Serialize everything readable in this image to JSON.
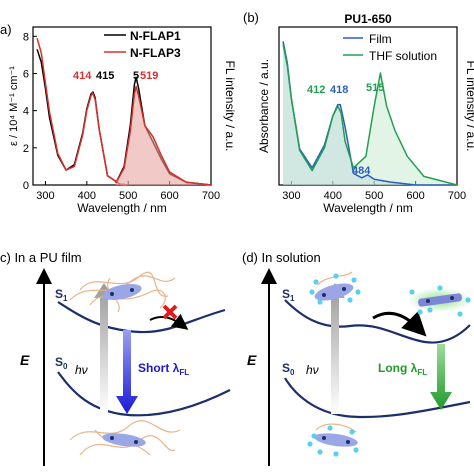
{
  "panel_a": {
    "label": "a)",
    "legend": [
      "N-FLAP1",
      "N-FLAP3"
    ],
    "peak_labels": [
      "414",
      "415",
      "519"
    ],
    "ylabel_left": "ε / 10⁴ M⁻¹ cm⁻¹",
    "ylabel_right": "FL intensity / a.u.",
    "xlabel": "Wavelength / nm",
    "yticks": [
      "0",
      "2",
      "4",
      "6",
      "8"
    ],
    "xticks": [
      "300",
      "400",
      "500",
      "600",
      "700"
    ]
  },
  "panel_b": {
    "label": "(b)",
    "title": "PU1-650",
    "legend": [
      "Film",
      "THF solution"
    ],
    "peak_labels": [
      "412",
      "418",
      "515",
      "484"
    ],
    "ylabel_left": "Absorbance / a.u.",
    "ylabel_right": "FL intensity / a.u.",
    "xlabel": "Wavelength / nm",
    "xticks": [
      "300",
      "400",
      "500",
      "600",
      "700"
    ]
  },
  "panel_c": {
    "label": "c) In a PU film",
    "s1": "S",
    "s1_sub": "1",
    "s0": "S",
    "s0_sub": "0",
    "axis": "E",
    "hv": "hν",
    "emission": "Short λ",
    "emission_sub": "FL"
  },
  "panel_d": {
    "label": "(d) In solution",
    "s1": "S",
    "s1_sub": "1",
    "s0": "S",
    "s0_sub": "0",
    "axis": "E",
    "hv": "hν",
    "emission": "Long λ",
    "emission_sub": "FL"
  },
  "colors": {
    "nflap1": "#000000",
    "nflap3": "#d9302c",
    "film": "#2b5fbf",
    "thf": "#22a050",
    "curve": "#1c2f6b",
    "short_arrow": "#1a1ad6",
    "long_arrow": "#1f9a2a"
  },
  "chart_data": [
    {
      "type": "line",
      "title": "",
      "xlabel": "Wavelength / nm",
      "ylabel": "ε / 10⁴ M⁻¹ cm⁻¹",
      "xlim": [
        270,
        700
      ],
      "ylim": [
        0,
        8.5
      ],
      "series": [
        {
          "name": "N-FLAP1",
          "x": [
            280,
            290,
            300,
            310,
            330,
            350,
            370,
            390,
            400,
            410,
            415,
            420,
            430,
            450,
            480,
            500
          ],
          "y": [
            7.3,
            6.6,
            5.2,
            3.6,
            1.6,
            0.8,
            1.1,
            2.8,
            4.1,
            4.9,
            5.0,
            4.7,
            3.0,
            0.5,
            0.05,
            0.0
          ]
        },
        {
          "name": "N-FLAP3",
          "x": [
            280,
            290,
            300,
            310,
            330,
            350,
            370,
            390,
            400,
            410,
            414,
            420,
            430,
            450,
            480,
            500
          ],
          "y": [
            7.9,
            7.1,
            5.5,
            3.9,
            1.7,
            0.8,
            1.0,
            2.7,
            4.0,
            4.8,
            4.95,
            4.6,
            3.0,
            0.5,
            0.05,
            0.0
          ]
        },
        {
          "name": "N-FLAP1 FL",
          "x": [
            470,
            490,
            505,
            515,
            519,
            525,
            540,
            560,
            580,
            600,
            640,
            700
          ],
          "y": [
            0.1,
            1.0,
            3.2,
            5.4,
            5.8,
            5.2,
            3.2,
            2.3,
            1.4,
            0.6,
            0.15,
            0.0
          ]
        },
        {
          "name": "N-FLAP3 FL",
          "x": [
            470,
            490,
            505,
            515,
            519,
            525,
            540,
            560,
            580,
            600,
            640,
            700
          ],
          "y": [
            0.1,
            0.9,
            2.9,
            4.9,
            5.3,
            4.8,
            3.2,
            2.6,
            1.6,
            0.7,
            0.15,
            0.0
          ]
        }
      ]
    },
    {
      "type": "line",
      "title": "PU1-650",
      "xlabel": "Wavelength / nm",
      "ylabel": "Absorbance / a.u.",
      "xlim": [
        270,
        700
      ],
      "series": [
        {
          "name": "Film",
          "x": [
            280,
            290,
            300,
            320,
            350,
            380,
            400,
            412,
            418,
            430,
            450,
            470,
            484,
            500,
            540,
            600,
            700
          ],
          "y": [
            1.0,
            0.85,
            0.6,
            0.25,
            0.12,
            0.28,
            0.48,
            0.56,
            0.56,
            0.4,
            0.08,
            0.05,
            0.07,
            0.04,
            0.02,
            0.0,
            0.0
          ]
        },
        {
          "name": "THF solution",
          "x": [
            280,
            290,
            300,
            320,
            350,
            380,
            400,
            412,
            420,
            430,
            450,
            480,
            500,
            515,
            530,
            550,
            580,
            620,
            700
          ],
          "y": [
            0.98,
            0.83,
            0.6,
            0.24,
            0.1,
            0.26,
            0.48,
            0.55,
            0.5,
            0.3,
            0.12,
            0.2,
            0.55,
            0.78,
            0.55,
            0.38,
            0.2,
            0.06,
            0.0
          ]
        }
      ]
    }
  ]
}
